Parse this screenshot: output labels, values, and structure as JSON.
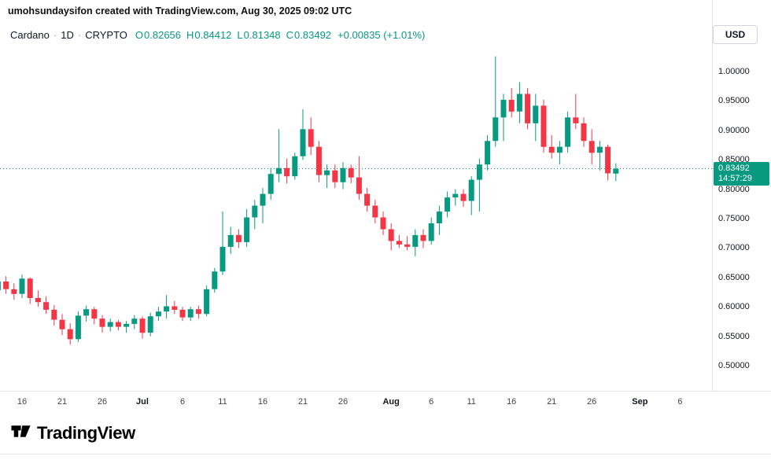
{
  "attribution": "umohsundaysifon created with TradingView.com, Aug 30, 2025 09:02 UTC",
  "legend": {
    "symbol": "Cardano",
    "separator": "·",
    "interval": "1D",
    "exchange": "CRYPTO",
    "ohlc": [
      {
        "label": "O",
        "value": "0.82656"
      },
      {
        "label": "H",
        "value": "0.84412"
      },
      {
        "label": "L",
        "value": "0.81348"
      },
      {
        "label": "C",
        "value": "0.83492"
      }
    ],
    "change": "+0.00835 (+1.01%)"
  },
  "currency_button": "USD",
  "price_scale": {
    "labels": [
      "1.00000",
      "0.95000",
      "0.90000",
      "0.85000",
      "0.80000",
      "0.75000",
      "0.70000",
      "0.65000",
      "0.60000",
      "0.55000",
      "0.50000"
    ],
    "last_price": "0.83492",
    "countdown": "14:57:29"
  },
  "time_scale": [
    {
      "label": "16",
      "index": 3
    },
    {
      "label": "21",
      "index": 8
    },
    {
      "label": "26",
      "index": 13
    },
    {
      "label": "Jul",
      "index": 18,
      "major": true
    },
    {
      "label": "6",
      "index": 23
    },
    {
      "label": "11",
      "index": 28
    },
    {
      "label": "16",
      "index": 33
    },
    {
      "label": "21",
      "index": 38
    },
    {
      "label": "26",
      "index": 43
    },
    {
      "label": "Aug",
      "index": 49,
      "major": true
    },
    {
      "label": "6",
      "index": 54
    },
    {
      "label": "11",
      "index": 59
    },
    {
      "label": "16",
      "index": 64
    },
    {
      "label": "21",
      "index": 69
    },
    {
      "label": "26",
      "index": 74
    },
    {
      "label": "Sep",
      "index": 80,
      "major": true
    },
    {
      "label": "6",
      "index": 85
    }
  ],
  "footer": {
    "logo_text": "TradingView"
  },
  "colors": {
    "up": "#089981",
    "down": "#F23645",
    "accent": "#089981",
    "text": "#131722",
    "muted": "#9598a1",
    "border": "#e0e3eb"
  },
  "chart_data": {
    "type": "candlestick",
    "title": "Cardano (ADA/USD) Daily",
    "symbol": "Cardano",
    "interval": "1D",
    "exchange": "CRYPTO",
    "currency": "USD",
    "ylim": [
      0.457,
      1.048
    ],
    "y_ticks": [
      0.5,
      0.55,
      0.6,
      0.65,
      0.7,
      0.75,
      0.8,
      0.85,
      0.9,
      0.95,
      1.0
    ],
    "last_price": 0.83492,
    "last_candle": {
      "open": 0.82656,
      "high": 0.84412,
      "low": 0.81348,
      "close": 0.83492,
      "change": 0.00835,
      "change_pct": 1.01
    },
    "columns": [
      "date",
      "open",
      "high",
      "low",
      "close"
    ],
    "candles": [
      [
        "Jun 13",
        0.628,
        0.648,
        0.618,
        0.643
      ],
      [
        "Jun 14",
        0.643,
        0.652,
        0.622,
        0.63
      ],
      [
        "Jun 15",
        0.63,
        0.64,
        0.612,
        0.622
      ],
      [
        "Jun 16",
        0.622,
        0.655,
        0.615,
        0.648
      ],
      [
        "Jun 17",
        0.648,
        0.65,
        0.605,
        0.615
      ],
      [
        "Jun 18",
        0.615,
        0.628,
        0.6,
        0.608
      ],
      [
        "Jun 19",
        0.608,
        0.618,
        0.588,
        0.595
      ],
      [
        "Jun 20",
        0.595,
        0.603,
        0.568,
        0.578
      ],
      [
        "Jun 21",
        0.578,
        0.588,
        0.552,
        0.562
      ],
      [
        "Jun 22",
        0.562,
        0.572,
        0.536,
        0.545
      ],
      [
        "Jun 23",
        0.545,
        0.592,
        0.54,
        0.585
      ],
      [
        "Jun 24",
        0.585,
        0.602,
        0.575,
        0.596
      ],
      [
        "Jun 25",
        0.596,
        0.6,
        0.57,
        0.58
      ],
      [
        "Jun 26",
        0.58,
        0.586,
        0.556,
        0.566
      ],
      [
        "Jun 27",
        0.566,
        0.58,
        0.558,
        0.574
      ],
      [
        "Jun 28",
        0.574,
        0.578,
        0.56,
        0.566
      ],
      [
        "Jun 29",
        0.566,
        0.576,
        0.556,
        0.571
      ],
      [
        "Jun 30",
        0.571,
        0.586,
        0.562,
        0.58
      ],
      [
        "Jul 1",
        0.58,
        0.584,
        0.546,
        0.556
      ],
      [
        "Jul 2",
        0.556,
        0.59,
        0.55,
        0.584
      ],
      [
        "Jul 3",
        0.584,
        0.6,
        0.576,
        0.592
      ],
      [
        "Jul 4",
        0.592,
        0.62,
        0.58,
        0.601
      ],
      [
        "Jul 5",
        0.601,
        0.61,
        0.588,
        0.595
      ],
      [
        "Jul 6",
        0.595,
        0.6,
        0.576,
        0.582
      ],
      [
        "Jul 7",
        0.582,
        0.6,
        0.576,
        0.596
      ],
      [
        "Jul 8",
        0.596,
        0.602,
        0.58,
        0.588
      ],
      [
        "Jul 9",
        0.588,
        0.636,
        0.584,
        0.63
      ],
      [
        "Jul 10",
        0.63,
        0.666,
        0.624,
        0.66
      ],
      [
        "Jul 11",
        0.66,
        0.762,
        0.654,
        0.702
      ],
      [
        "Jul 12",
        0.702,
        0.736,
        0.69,
        0.722
      ],
      [
        "Jul 13",
        0.722,
        0.732,
        0.7,
        0.71
      ],
      [
        "Jul 14",
        0.71,
        0.766,
        0.702,
        0.752
      ],
      [
        "Jul 15",
        0.752,
        0.782,
        0.732,
        0.772
      ],
      [
        "Jul 16",
        0.772,
        0.802,
        0.742,
        0.792
      ],
      [
        "Jul 17",
        0.792,
        0.836,
        0.782,
        0.826
      ],
      [
        "Jul 18",
        0.826,
        0.902,
        0.812,
        0.836
      ],
      [
        "Jul 19",
        0.836,
        0.852,
        0.81,
        0.822
      ],
      [
        "Jul 20",
        0.822,
        0.862,
        0.816,
        0.856
      ],
      [
        "Jul 21",
        0.856,
        0.936,
        0.85,
        0.902
      ],
      [
        "Jul 22",
        0.902,
        0.922,
        0.858,
        0.872
      ],
      [
        "Jul 23",
        0.872,
        0.882,
        0.812,
        0.824
      ],
      [
        "Jul 24",
        0.824,
        0.842,
        0.802,
        0.832
      ],
      [
        "Jul 25",
        0.832,
        0.842,
        0.802,
        0.812
      ],
      [
        "Jul 26",
        0.812,
        0.846,
        0.8,
        0.836
      ],
      [
        "Jul 27",
        0.836,
        0.842,
        0.81,
        0.82
      ],
      [
        "Jul 28",
        0.82,
        0.856,
        0.782,
        0.792
      ],
      [
        "Jul 29",
        0.792,
        0.802,
        0.762,
        0.772
      ],
      [
        "Jul 30",
        0.772,
        0.782,
        0.742,
        0.752
      ],
      [
        "Jul 31",
        0.752,
        0.762,
        0.722,
        0.732
      ],
      [
        "Aug 1",
        0.732,
        0.742,
        0.696,
        0.712
      ],
      [
        "Aug 2",
        0.712,
        0.722,
        0.7,
        0.706
      ],
      [
        "Aug 3",
        0.706,
        0.72,
        0.696,
        0.702
      ],
      [
        "Aug 4",
        0.702,
        0.732,
        0.686,
        0.722
      ],
      [
        "Aug 5",
        0.722,
        0.732,
        0.7,
        0.712
      ],
      [
        "Aug 6",
        0.712,
        0.752,
        0.706,
        0.742
      ],
      [
        "Aug 7",
        0.742,
        0.772,
        0.722,
        0.762
      ],
      [
        "Aug 8",
        0.762,
        0.796,
        0.752,
        0.786
      ],
      [
        "Aug 9",
        0.786,
        0.8,
        0.772,
        0.792
      ],
      [
        "Aug 10",
        0.792,
        0.8,
        0.77,
        0.78
      ],
      [
        "Aug 11",
        0.78,
        0.822,
        0.756,
        0.816
      ],
      [
        "Aug 12",
        0.816,
        0.852,
        0.762,
        0.842
      ],
      [
        "Aug 13",
        0.842,
        0.892,
        0.832,
        0.882
      ],
      [
        "Aug 14",
        0.882,
        1.026,
        0.872,
        0.922
      ],
      [
        "Aug 15",
        0.922,
        0.962,
        0.882,
        0.952
      ],
      [
        "Aug 16",
        0.952,
        0.972,
        0.922,
        0.932
      ],
      [
        "Aug 17",
        0.932,
        0.982,
        0.912,
        0.962
      ],
      [
        "Aug 18",
        0.962,
        0.972,
        0.902,
        0.912
      ],
      [
        "Aug 19",
        0.912,
        0.962,
        0.882,
        0.942
      ],
      [
        "Aug 20",
        0.942,
        0.952,
        0.862,
        0.872
      ],
      [
        "Aug 21",
        0.872,
        0.892,
        0.852,
        0.862
      ],
      [
        "Aug 22",
        0.862,
        0.882,
        0.842,
        0.872
      ],
      [
        "Aug 23",
        0.872,
        0.932,
        0.862,
        0.922
      ],
      [
        "Aug 24",
        0.922,
        0.962,
        0.902,
        0.912
      ],
      [
        "Aug 25",
        0.912,
        0.922,
        0.872,
        0.882
      ],
      [
        "Aug 26",
        0.882,
        0.902,
        0.842,
        0.862
      ],
      [
        "Aug 27",
        0.862,
        0.882,
        0.832,
        0.872
      ],
      [
        "Aug 28",
        0.872,
        0.876,
        0.815,
        0.827
      ],
      [
        "Aug 29",
        0.82656,
        0.84412,
        0.81348,
        0.83492
      ]
    ]
  }
}
